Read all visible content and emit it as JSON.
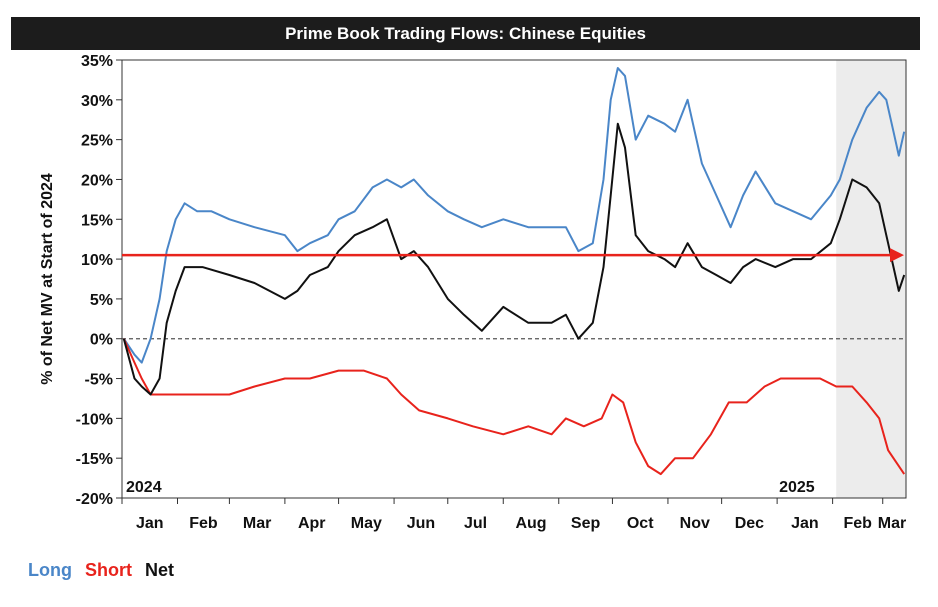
{
  "chart_data": {
    "type": "line",
    "title": "Prime Book Trading Flows: Chinese Equities",
    "ylabel": "% of Net MV at Start of 2024",
    "ylim": [
      -20,
      35
    ],
    "yticks": [
      "35%",
      "30%",
      "25%",
      "20%",
      "15%",
      "10%",
      "5%",
      "0%",
      "-5%",
      "-10%",
      "-15%",
      "-20%"
    ],
    "xlim": [
      "2024-01-01",
      "2025-03-14"
    ],
    "xticks": [
      "Jan",
      "Feb",
      "Mar",
      "Apr",
      "May",
      "Jun",
      "Jul",
      "Aug",
      "Sep",
      "Oct",
      "Nov",
      "Dec",
      "Jan",
      "Feb",
      "Mar"
    ],
    "year_labels": [
      "2024",
      "2025"
    ],
    "shaded_region": [
      "2025-02-03",
      "2025-03-14"
    ],
    "reference_line": {
      "value": 10.5,
      "color": "#e8231c",
      "style": "arrow"
    },
    "zero_line": "dashed",
    "legend_position": "bottom-left",
    "series": [
      {
        "name": "Long",
        "color": "#4a86c8",
        "points": [
          [
            "2024-01-02",
            0
          ],
          [
            "2024-01-08",
            -2
          ],
          [
            "2024-01-12",
            -3
          ],
          [
            "2024-01-17",
            0
          ],
          [
            "2024-01-22",
            5
          ],
          [
            "2024-01-26",
            11
          ],
          [
            "2024-01-31",
            15
          ],
          [
            "2024-02-05",
            17
          ],
          [
            "2024-02-12",
            16
          ],
          [
            "2024-02-20",
            16
          ],
          [
            "2024-03-01",
            15
          ],
          [
            "2024-03-15",
            14
          ],
          [
            "2024-04-01",
            13
          ],
          [
            "2024-04-08",
            11
          ],
          [
            "2024-04-15",
            12
          ],
          [
            "2024-04-25",
            13
          ],
          [
            "2024-05-01",
            15
          ],
          [
            "2024-05-10",
            16
          ],
          [
            "2024-05-20",
            19
          ],
          [
            "2024-05-28",
            20
          ],
          [
            "2024-06-05",
            19
          ],
          [
            "2024-06-12",
            20
          ],
          [
            "2024-06-20",
            18
          ],
          [
            "2024-07-01",
            16
          ],
          [
            "2024-07-10",
            15
          ],
          [
            "2024-07-20",
            14
          ],
          [
            "2024-08-01",
            15
          ],
          [
            "2024-08-15",
            14
          ],
          [
            "2024-08-28",
            14
          ],
          [
            "2024-09-05",
            14
          ],
          [
            "2024-09-12",
            11
          ],
          [
            "2024-09-20",
            12
          ],
          [
            "2024-09-26",
            20
          ],
          [
            "2024-09-30",
            30
          ],
          [
            "2024-10-04",
            34
          ],
          [
            "2024-10-08",
            33
          ],
          [
            "2024-10-14",
            25
          ],
          [
            "2024-10-21",
            28
          ],
          [
            "2024-10-30",
            27
          ],
          [
            "2024-11-05",
            26
          ],
          [
            "2024-11-12",
            30
          ],
          [
            "2024-11-20",
            22
          ],
          [
            "2024-11-28",
            18
          ],
          [
            "2024-12-06",
            14
          ],
          [
            "2024-12-13",
            18
          ],
          [
            "2024-12-20",
            21
          ],
          [
            "2024-12-31",
            17
          ],
          [
            "2025-01-10",
            16
          ],
          [
            "2025-01-20",
            15
          ],
          [
            "2025-01-31",
            18
          ],
          [
            "2025-02-05",
            20
          ],
          [
            "2025-02-12",
            25
          ],
          [
            "2025-02-20",
            29
          ],
          [
            "2025-02-27",
            31
          ],
          [
            "2025-03-03",
            30
          ],
          [
            "2025-03-07",
            26
          ],
          [
            "2025-03-10",
            23
          ],
          [
            "2025-03-13",
            26
          ]
        ]
      },
      {
        "name": "Short",
        "color": "#e8231c",
        "points": [
          [
            "2024-01-02",
            0
          ],
          [
            "2024-01-08",
            -3
          ],
          [
            "2024-01-12",
            -5
          ],
          [
            "2024-01-17",
            -7
          ],
          [
            "2024-01-22",
            -7
          ],
          [
            "2024-01-31",
            -7
          ],
          [
            "2024-02-10",
            -7
          ],
          [
            "2024-03-01",
            -7
          ],
          [
            "2024-03-15",
            -6
          ],
          [
            "2024-04-01",
            -5
          ],
          [
            "2024-04-15",
            -5
          ],
          [
            "2024-05-01",
            -4
          ],
          [
            "2024-05-15",
            -4
          ],
          [
            "2024-05-28",
            -5
          ],
          [
            "2024-06-05",
            -7
          ],
          [
            "2024-06-15",
            -9
          ],
          [
            "2024-07-01",
            -10
          ],
          [
            "2024-07-15",
            -11
          ],
          [
            "2024-08-01",
            -12
          ],
          [
            "2024-08-15",
            -11
          ],
          [
            "2024-08-28",
            -12
          ],
          [
            "2024-09-05",
            -10
          ],
          [
            "2024-09-15",
            -11
          ],
          [
            "2024-09-25",
            -10
          ],
          [
            "2024-10-01",
            -7
          ],
          [
            "2024-10-07",
            -8
          ],
          [
            "2024-10-14",
            -13
          ],
          [
            "2024-10-21",
            -16
          ],
          [
            "2024-10-28",
            -17
          ],
          [
            "2024-11-05",
            -15
          ],
          [
            "2024-11-15",
            -15
          ],
          [
            "2024-11-25",
            -12
          ],
          [
            "2024-12-05",
            -8
          ],
          [
            "2024-12-15",
            -8
          ],
          [
            "2024-12-25",
            -6
          ],
          [
            "2025-01-03",
            -5
          ],
          [
            "2025-01-15",
            -5
          ],
          [
            "2025-01-25",
            -5
          ],
          [
            "2025-02-03",
            -6
          ],
          [
            "2025-02-12",
            -6
          ],
          [
            "2025-02-20",
            -8
          ],
          [
            "2025-02-27",
            -10
          ],
          [
            "2025-03-04",
            -14
          ],
          [
            "2025-03-10",
            -16
          ],
          [
            "2025-03-13",
            -17
          ]
        ]
      },
      {
        "name": "Net",
        "color": "#111111",
        "points": [
          [
            "2024-01-02",
            0
          ],
          [
            "2024-01-08",
            -5
          ],
          [
            "2024-01-12",
            -6
          ],
          [
            "2024-01-17",
            -7
          ],
          [
            "2024-01-22",
            -5
          ],
          [
            "2024-01-26",
            2
          ],
          [
            "2024-01-31",
            6
          ],
          [
            "2024-02-05",
            9
          ],
          [
            "2024-02-15",
            9
          ],
          [
            "2024-03-01",
            8
          ],
          [
            "2024-03-15",
            7
          ],
          [
            "2024-04-01",
            5
          ],
          [
            "2024-04-08",
            6
          ],
          [
            "2024-04-15",
            8
          ],
          [
            "2024-04-25",
            9
          ],
          [
            "2024-05-01",
            11
          ],
          [
            "2024-05-10",
            13
          ],
          [
            "2024-05-20",
            14
          ],
          [
            "2024-05-28",
            15
          ],
          [
            "2024-06-05",
            10
          ],
          [
            "2024-06-12",
            11
          ],
          [
            "2024-06-20",
            9
          ],
          [
            "2024-07-01",
            5
          ],
          [
            "2024-07-10",
            3
          ],
          [
            "2024-07-20",
            1
          ],
          [
            "2024-08-01",
            4
          ],
          [
            "2024-08-15",
            2
          ],
          [
            "2024-08-28",
            2
          ],
          [
            "2024-09-05",
            3
          ],
          [
            "2024-09-12",
            0
          ],
          [
            "2024-09-20",
            2
          ],
          [
            "2024-09-26",
            9
          ],
          [
            "2024-09-30",
            18
          ],
          [
            "2024-10-04",
            27
          ],
          [
            "2024-10-08",
            24
          ],
          [
            "2024-10-14",
            13
          ],
          [
            "2024-10-21",
            11
          ],
          [
            "2024-10-30",
            10
          ],
          [
            "2024-11-05",
            9
          ],
          [
            "2024-11-12",
            12
          ],
          [
            "2024-11-20",
            9
          ],
          [
            "2024-11-28",
            8
          ],
          [
            "2024-12-06",
            7
          ],
          [
            "2024-12-13",
            9
          ],
          [
            "2024-12-20",
            10
          ],
          [
            "2024-12-31",
            9
          ],
          [
            "2025-01-10",
            10
          ],
          [
            "2025-01-20",
            10
          ],
          [
            "2025-01-31",
            12
          ],
          [
            "2025-02-05",
            15
          ],
          [
            "2025-02-12",
            20
          ],
          [
            "2025-02-20",
            19
          ],
          [
            "2025-02-27",
            17
          ],
          [
            "2025-03-03",
            13
          ],
          [
            "2025-03-07",
            9
          ],
          [
            "2025-03-10",
            6
          ],
          [
            "2025-03-13",
            8
          ]
        ]
      }
    ]
  }
}
